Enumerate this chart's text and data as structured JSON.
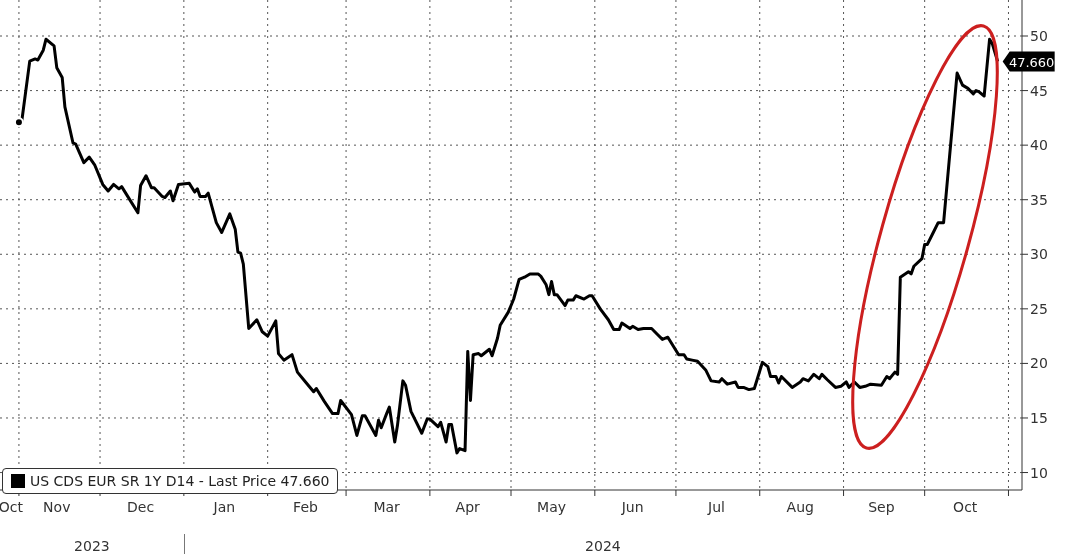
{
  "chart_data": {
    "type": "line",
    "x": [
      "2023-11-01",
      "2023-11-02",
      "2023-11-05",
      "2023-11-07",
      "2023-11-08",
      "2023-11-10",
      "2023-11-11",
      "2023-11-14",
      "2023-11-15",
      "2023-11-17",
      "2023-11-18",
      "2023-11-21",
      "2023-11-22",
      "2023-11-25",
      "2023-11-27",
      "2023-11-29",
      "2023-12-02",
      "2023-12-04",
      "2023-12-06",
      "2023-12-08",
      "2023-12-09",
      "2023-12-11",
      "2023-12-15",
      "2023-12-16",
      "2023-12-18",
      "2023-12-20",
      "2023-12-21",
      "2023-12-24",
      "2023-12-25",
      "2023-12-27",
      "2023-12-28",
      "2023-12-30",
      "2024-01-03",
      "2024-01-05",
      "2024-01-06",
      "2024-01-07",
      "2024-01-09",
      "2024-01-10",
      "2024-01-13",
      "2024-01-15",
      "2024-01-18",
      "2024-01-20",
      "2024-01-21",
      "2024-01-22",
      "2024-01-23",
      "2024-01-25",
      "2024-01-28",
      "2024-01-30",
      "2024-02-01",
      "2024-02-04",
      "2024-02-05",
      "2024-02-07",
      "2024-02-10",
      "2024-02-12",
      "2024-02-15",
      "2024-02-18",
      "2024-02-19",
      "2024-02-22",
      "2024-02-25",
      "2024-02-27",
      "2024-02-28",
      "2024-03-03",
      "2024-03-05",
      "2024-03-07",
      "2024-03-08",
      "2024-03-12",
      "2024-03-13",
      "2024-03-14",
      "2024-03-16",
      "2024-03-17",
      "2024-03-19",
      "2024-03-20",
      "2024-03-22",
      "2024-03-23",
      "2024-03-25",
      "2024-03-29",
      "2024-03-31",
      "2024-04-01",
      "2024-04-04",
      "2024-04-05",
      "2024-04-07",
      "2024-04-08",
      "2024-04-09",
      "2024-04-11",
      "2024-04-12",
      "2024-04-14",
      "2024-04-15",
      "2024-04-16",
      "2024-04-17",
      "2024-04-19",
      "2024-04-20",
      "2024-04-23",
      "2024-04-24",
      "2024-04-26",
      "2024-04-27",
      "2024-04-30",
      "2024-05-02",
      "2024-05-04",
      "2024-05-06",
      "2024-05-08",
      "2024-05-11",
      "2024-05-12",
      "2024-05-14",
      "2024-05-15",
      "2024-05-16",
      "2024-05-17",
      "2024-05-18",
      "2024-05-21",
      "2024-05-22",
      "2024-05-24",
      "2024-05-25",
      "2024-05-28",
      "2024-05-30",
      "2024-05-31",
      "2024-06-03",
      "2024-06-06",
      "2024-06-08",
      "2024-06-10",
      "2024-06-11",
      "2024-06-14",
      "2024-06-15",
      "2024-06-17",
      "2024-06-19",
      "2024-06-22",
      "2024-06-24",
      "2024-06-26",
      "2024-06-28",
      "2024-06-30",
      "2024-07-02",
      "2024-07-04",
      "2024-07-05",
      "2024-07-07",
      "2024-07-09",
      "2024-07-12",
      "2024-07-14",
      "2024-07-17",
      "2024-07-18",
      "2024-07-20",
      "2024-07-23",
      "2024-07-24",
      "2024-07-26",
      "2024-07-28",
      "2024-07-30",
      "2024-08-02",
      "2024-08-04",
      "2024-08-05",
      "2024-08-07",
      "2024-08-08",
      "2024-08-09",
      "2024-08-13",
      "2024-08-16",
      "2024-08-17",
      "2024-08-19",
      "2024-08-21",
      "2024-08-23",
      "2024-08-24",
      "2024-08-26",
      "2024-08-29",
      "2024-08-31",
      "2024-09-02",
      "2024-09-03",
      "2024-09-05",
      "2024-09-07",
      "2024-09-09",
      "2024-09-11",
      "2024-09-15",
      "2024-09-17",
      "2024-09-18",
      "2024-09-20",
      "2024-09-21",
      "2024-09-22",
      "2024-09-25",
      "2024-09-26",
      "2024-09-27",
      "2024-09-30",
      "2024-10-01",
      "2024-10-02",
      "2024-10-04",
      "2024-10-06",
      "2024-10-08",
      "2024-10-10",
      "2024-10-13",
      "2024-10-15",
      "2024-10-17",
      "2024-10-19",
      "2024-10-20",
      "2024-10-21",
      "2024-10-23",
      "2024-10-25",
      "2024-10-26",
      "2024-10-28"
    ],
    "series": [
      {
        "name": "US CDS EUR SR 1Y D14 - Last Price 47.660",
        "color": "#000000",
        "values": [
          42.1,
          42.1,
          47.7,
          47.9,
          47.8,
          48.7,
          49.7,
          49.1,
          47.1,
          46.2,
          43.5,
          40.2,
          40.1,
          38.4,
          38.9,
          38.2,
          36.4,
          35.8,
          36.4,
          36.0,
          36.2,
          35.4,
          33.8,
          36.3,
          37.2,
          36.1,
          36.1,
          35.3,
          35.2,
          35.8,
          34.9,
          36.4,
          36.5,
          35.7,
          36.0,
          35.3,
          35.3,
          35.6,
          32.9,
          32.0,
          33.7,
          32.3,
          30.2,
          30.1,
          29.1,
          23.2,
          24.0,
          22.9,
          22.5,
          23.9,
          20.9,
          20.3,
          20.8,
          19.2,
          18.3,
          17.4,
          17.7,
          16.5,
          15.4,
          15.4,
          16.6,
          15.3,
          13.4,
          15.2,
          15.2,
          13.4,
          14.8,
          14.1,
          15.4,
          16.0,
          12.8,
          14.3,
          18.4,
          18.0,
          15.6,
          13.6,
          14.9,
          14.9,
          14.2,
          14.6,
          12.8,
          14.4,
          14.4,
          11.8,
          12.2,
          12.0,
          21.1,
          16.6,
          20.8,
          20.9,
          20.7,
          21.3,
          20.7,
          22.3,
          23.5,
          24.7,
          25.9,
          27.7,
          27.9,
          28.2,
          28.2,
          28.0,
          27.2,
          26.3,
          27.5,
          26.3,
          26.3,
          25.3,
          25.8,
          25.8,
          26.2,
          25.9,
          26.2,
          26.2,
          25.0,
          24.0,
          23.1,
          23.1,
          23.7,
          23.2,
          23.4,
          23.1,
          23.2,
          23.2,
          22.7,
          22.2,
          22.4,
          21.6,
          20.8,
          20.8,
          20.4,
          20.3,
          20.2,
          19.4,
          18.4,
          18.3,
          18.6,
          18.1,
          18.3,
          17.8,
          17.8,
          17.6,
          17.7,
          20.1,
          19.7,
          18.8,
          18.8,
          18.2,
          18.8,
          17.8,
          18.3,
          18.6,
          18.4,
          19.0,
          18.6,
          19.0,
          18.5,
          17.8,
          17.9,
          18.3,
          17.8,
          18.3,
          17.8,
          17.9,
          18.1,
          18.0,
          18.8,
          18.6,
          19.2,
          19.0,
          27.9,
          28.4,
          28.2,
          28.9,
          29.6,
          30.9,
          30.9,
          31.9,
          32.9,
          32.9,
          38.4,
          46.6,
          45.5,
          45.2,
          44.7,
          45.0,
          44.9,
          44.5,
          49.7,
          49.3,
          47.66
        ],
        "value_labels": [
          null,
          null,
          null,
          null,
          null,
          null,
          null,
          null,
          null,
          null,
          null,
          null,
          null,
          null,
          null,
          null,
          null,
          null,
          null,
          null,
          null,
          null,
          null,
          null,
          null,
          null,
          null,
          null,
          null,
          null,
          null,
          null,
          null,
          null,
          null,
          null,
          null,
          null,
          null,
          null,
          null,
          null,
          null,
          null,
          null,
          null,
          null,
          null,
          null,
          null,
          null,
          null,
          null,
          null,
          null,
          null,
          null,
          null,
          null,
          null,
          null,
          null,
          null,
          null,
          null,
          null,
          null,
          null,
          null,
          null,
          null,
          null,
          null,
          null,
          null,
          null,
          null,
          null,
          null,
          null,
          null,
          null,
          null,
          null,
          null,
          null,
          null,
          null,
          null,
          null,
          null,
          null,
          null,
          null,
          null,
          null,
          null,
          null,
          null,
          null,
          null,
          null,
          null,
          null,
          null,
          null,
          null,
          null,
          null,
          null,
          null,
          null,
          null,
          null,
          null,
          null,
          null,
          null,
          null,
          null,
          null,
          null,
          null,
          null,
          null,
          null,
          null,
          null,
          null,
          null,
          null,
          null,
          null,
          null,
          null,
          null,
          null,
          null,
          null,
          null,
          null,
          null,
          null,
          null,
          null,
          null,
          null,
          null,
          null,
          null,
          null,
          null,
          null,
          null,
          null,
          null,
          null,
          null,
          null,
          null,
          null,
          null,
          null,
          null,
          null,
          null,
          null,
          null,
          null,
          null,
          null,
          null,
          null,
          null,
          null,
          null,
          null,
          null,
          null,
          null,
          null,
          null,
          null,
          null,
          null,
          null,
          null,
          null,
          null,
          null,
          "47.660"
        ]
      }
    ],
    "xlim": [
      "2023-10-25",
      "2024-11-06"
    ],
    "xticks": [
      {
        "value": "2023-10-29",
        "label": "Oct"
      },
      {
        "value": "2023-11-01",
        "label": null
      },
      {
        "value": "2023-11-15",
        "label": "Nov"
      },
      {
        "value": "2023-12-01",
        "label": null
      },
      {
        "value": "2023-12-16",
        "label": "Dec"
      },
      {
        "value": "2024-01-01",
        "label": null
      },
      {
        "value": "2024-01-16",
        "label": "Jan"
      },
      {
        "value": "2024-02-01",
        "label": null
      },
      {
        "value": "2024-02-15",
        "label": "Feb"
      },
      {
        "value": "2024-03-01",
        "label": null
      },
      {
        "value": "2024-03-16",
        "label": "Mar"
      },
      {
        "value": "2024-04-01",
        "label": null
      },
      {
        "value": "2024-04-15",
        "label": "Apr"
      },
      {
        "value": "2024-05-01",
        "label": null
      },
      {
        "value": "2024-05-16",
        "label": "May"
      },
      {
        "value": "2024-06-01",
        "label": null
      },
      {
        "value": "2024-06-15",
        "label": "Jun"
      },
      {
        "value": "2024-07-01",
        "label": null
      },
      {
        "value": "2024-07-16",
        "label": "Jul"
      },
      {
        "value": "2024-08-01",
        "label": null
      },
      {
        "value": "2024-08-16",
        "label": "Aug"
      },
      {
        "value": "2024-09-01",
        "label": null
      },
      {
        "value": "2024-09-15",
        "label": "Sep"
      },
      {
        "value": "2024-10-01",
        "label": null
      },
      {
        "value": "2024-10-16",
        "label": "Oct"
      },
      {
        "value": "2024-11-01",
        "label": null
      }
    ],
    "ylim": [
      8.4,
      53.3
    ],
    "yticks": [
      10,
      15,
      20,
      25,
      30,
      35,
      40,
      45,
      50
    ],
    "annotations": [
      "2023",
      "2024"
    ],
    "grid": true,
    "legend": "bottom left",
    "marker": "none"
  }
}
